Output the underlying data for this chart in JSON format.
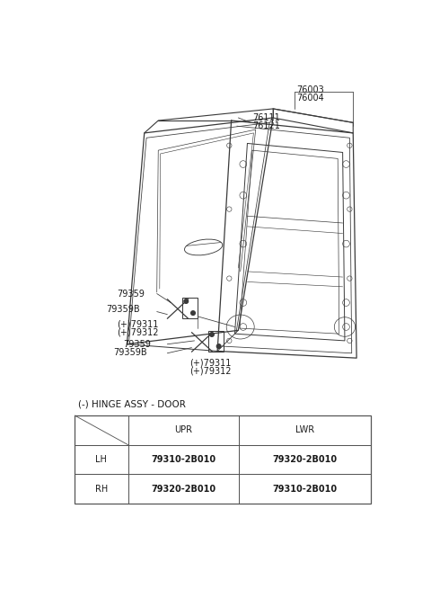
{
  "bg_color": "#ffffff",
  "fig_width": 4.8,
  "fig_height": 6.55,
  "dpi": 100,
  "table_label": "(-) HINGE ASSY - DOOR",
  "table_header": [
    "",
    "UPR",
    "LWR"
  ],
  "table_rows": [
    [
      "LH",
      "79310-2B010",
      "79320-2B010"
    ],
    [
      "RH",
      "79320-2B010",
      "79310-2B010"
    ]
  ],
  "line_color": "#3a3a3a",
  "text_color": "#1a1a1a",
  "table_border_color": "#555555"
}
